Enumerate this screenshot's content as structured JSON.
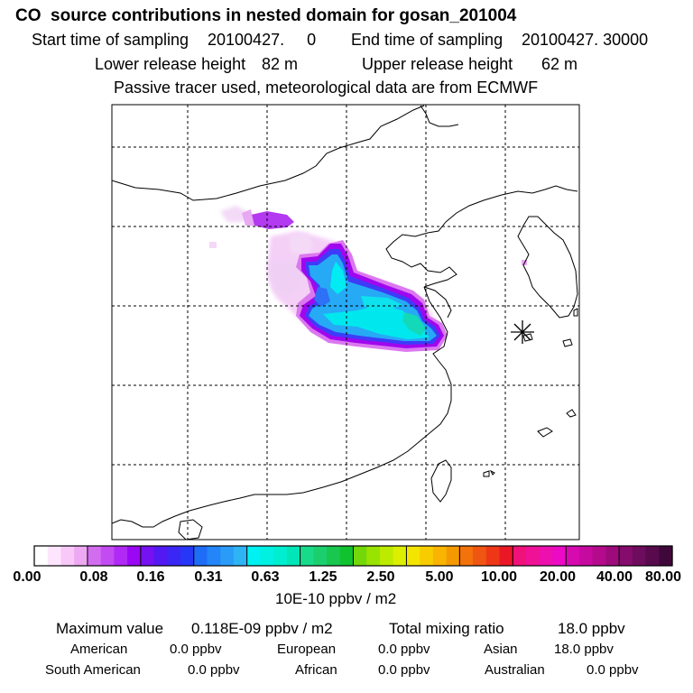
{
  "header": {
    "title": "CO  source contributions in nested domain for gosan_201004",
    "start_label": "Start time of sampling",
    "start_value": "20100427.     0",
    "end_label": "End time of sampling",
    "end_value": "20100427. 30000",
    "lower_label": "Lower release height",
    "lower_value": "82 m",
    "upper_label": "Upper release height",
    "upper_value": "62 m",
    "note": "Passive tracer used, meteorological data are from ECMWF"
  },
  "map": {
    "receptor_marker": "asterisk-icon",
    "plume_colors": {
      "light": "#f2c4f5",
      "pink": "#e08bf0",
      "purple": "#a400e6",
      "blue": "#3a4cff",
      "cyan": "#00e7f2",
      "sky": "#27b1f3",
      "teal": "#12dcb7"
    }
  },
  "colorbar": {
    "units": "10E-10 ppbv / m2",
    "labels": [
      "0.00",
      "0.08",
      "0.16",
      "0.31",
      "0.63",
      "1.25",
      "2.50",
      "5.00",
      "10.00",
      "20.00",
      "40.00",
      "80.00"
    ],
    "colors": [
      "#ffffff",
      "#fde6fd",
      "#f8c8f8",
      "#eea9f3",
      "#d36df0",
      "#c24bf2",
      "#b029f4",
      "#9a07f4",
      "#7511f2",
      "#5319f2",
      "#3a27f5",
      "#2637f7",
      "#1f6df7",
      "#2385f8",
      "#2a9cf7",
      "#2eb4f5",
      "#00f1f1",
      "#00f0e2",
      "#00eed0",
      "#00e6b8",
      "#18db8a",
      "#1ccf6e",
      "#18c84e",
      "#10c22e",
      "#74d70a",
      "#98e300",
      "#bdeb00",
      "#dcef00",
      "#f4e500",
      "#f8cd00",
      "#f8b400",
      "#f49a00",
      "#f3720b",
      "#ef5611",
      "#ee3717",
      "#ea1827",
      "#f0127a",
      "#ef1296",
      "#ed0fae",
      "#ec0ac6",
      "#d70ab0",
      "#c60aa0",
      "#b40a8c",
      "#9d0a7b",
      "#850c6c",
      "#6e0c5d",
      "#580a4d",
      "#40073a"
    ]
  },
  "summary": {
    "max_label": "Maximum value",
    "max_value": "0.118E-09 ppbv / m2",
    "total_label": "Total mixing ratio",
    "total_value": "18.0 ppbv",
    "regions": [
      {
        "name": "American",
        "value": "0.0 ppbv"
      },
      {
        "name": "European",
        "value": "0.0 ppbv"
      },
      {
        "name": "Asian",
        "value": "18.0 ppbv"
      },
      {
        "name": "South American",
        "value": "0.0 ppbv"
      },
      {
        "name": "African",
        "value": "0.0 ppbv"
      },
      {
        "name": "Australian",
        "value": "0.0 ppbv"
      }
    ]
  }
}
